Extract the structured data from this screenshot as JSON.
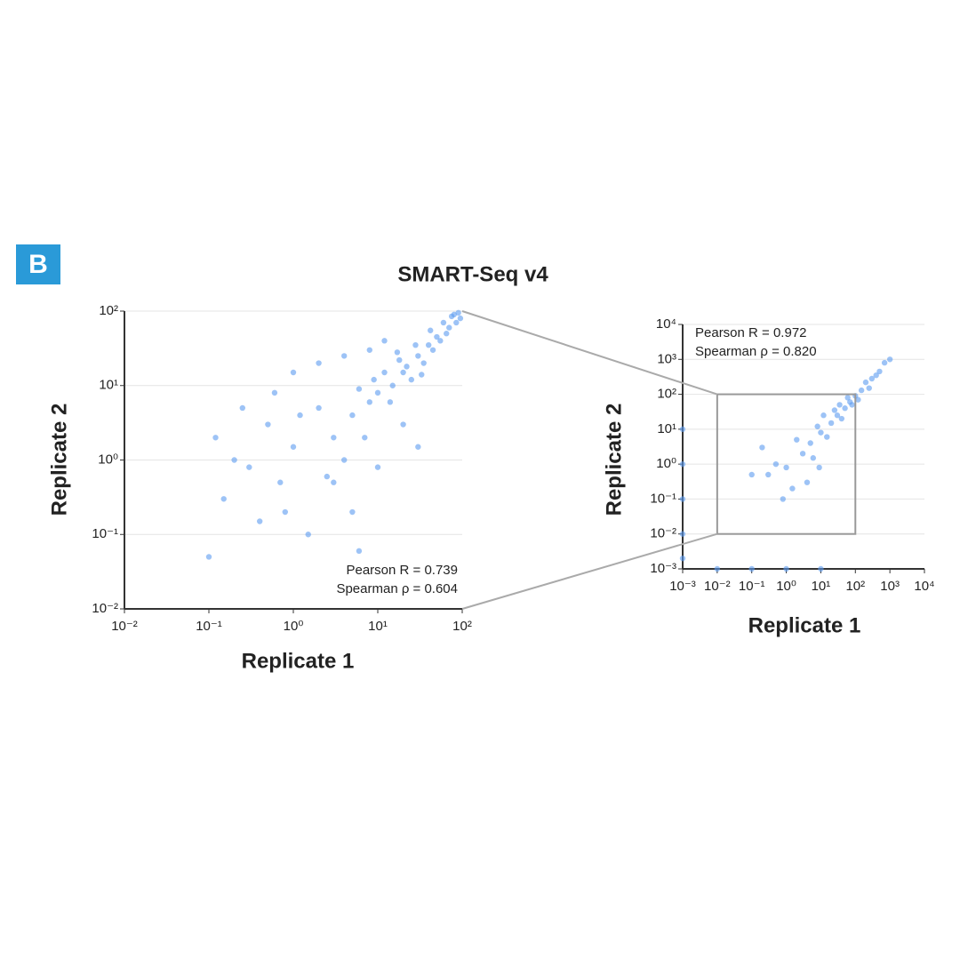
{
  "panel_label": "B",
  "chart_data": [
    {
      "type": "scatter",
      "title": "SMART-Seq v4",
      "x_label": "Replicate 1",
      "y_label": "Replicate 2",
      "annotations": [
        "Pearson R = 0.739",
        "Spearman ρ = 0.604"
      ],
      "xscale": "log",
      "yscale": "log",
      "grid": true,
      "color": "#5b9bf0",
      "xlim": [
        0.01,
        100
      ],
      "ylim": [
        0.01,
        100
      ],
      "xticks": [
        {
          "value": 0.01,
          "label": "10⁻²"
        },
        {
          "value": 0.1,
          "label": "10⁻¹"
        },
        {
          "value": 1,
          "label": "10⁰"
        },
        {
          "value": 10,
          "label": "10¹"
        },
        {
          "value": 100,
          "label": "10²"
        }
      ],
      "yticks": [
        {
          "value": 0.01,
          "label": "10⁻²"
        },
        {
          "value": 0.1,
          "label": "10⁻¹"
        },
        {
          "value": 1,
          "label": "10⁰"
        },
        {
          "value": 10,
          "label": "10¹"
        },
        {
          "value": 100,
          "label": "10²"
        }
      ],
      "x": [
        20,
        30,
        15,
        40,
        50,
        60,
        80,
        70,
        10,
        25,
        35,
        45,
        12,
        8,
        18,
        55,
        65,
        90,
        95,
        28,
        22,
        6,
        5,
        9,
        14,
        33,
        42,
        75,
        85,
        17,
        3,
        2,
        1,
        0.5,
        0.3,
        0.2,
        0.1,
        0.15,
        0.8,
        1.5,
        3,
        5,
        0.6,
        1,
        2,
        0.4,
        4,
        7,
        10,
        20,
        30,
        0.25,
        0.12,
        1.2,
        2.5,
        6,
        0.7,
        12,
        4,
        8
      ],
      "values": [
        15,
        25,
        10,
        35,
        45,
        70,
        90,
        60,
        8,
        12,
        20,
        30,
        15,
        6,
        22,
        40,
        50,
        95,
        80,
        35,
        18,
        9,
        4,
        12,
        6,
        14,
        55,
        85,
        70,
        28,
        2,
        5,
        1.5,
        3,
        0.8,
        1,
        0.05,
        0.3,
        0.2,
        0.1,
        0.5,
        0.2,
        8,
        15,
        20,
        0.15,
        1,
        2,
        0.8,
        3,
        1.5,
        5,
        2,
        4,
        0.6,
        0.06,
        0.5,
        40,
        25,
        30
      ]
    },
    {
      "type": "scatter",
      "x_label": "Replicate 1",
      "y_label": "Replicate 2",
      "annotations": [
        "Pearson R = 0.972",
        "Spearman ρ = 0.820"
      ],
      "xscale": "log",
      "yscale": "log",
      "grid": true,
      "color": "#5b9bf0",
      "xlim": [
        0.001,
        10000
      ],
      "ylim": [
        0.001,
        10000
      ],
      "xticks": [
        {
          "value": 0.001,
          "label": "10⁻³"
        },
        {
          "value": 0.01,
          "label": "10⁻²"
        },
        {
          "value": 0.1,
          "label": "10⁻¹"
        },
        {
          "value": 1,
          "label": "10⁰"
        },
        {
          "value": 10,
          "label": "10¹"
        },
        {
          "value": 100,
          "label": "10²"
        },
        {
          "value": 1000,
          "label": "10³"
        },
        {
          "value": 10000,
          "label": "10⁴"
        }
      ],
      "yticks": [
        {
          "value": 0.001,
          "label": "10⁻³"
        },
        {
          "value": 0.01,
          "label": "10⁻²"
        },
        {
          "value": 0.1,
          "label": "10⁻¹"
        },
        {
          "value": 1,
          "label": "10⁰"
        },
        {
          "value": 10,
          "label": "10¹"
        },
        {
          "value": 100,
          "label": "10²"
        },
        {
          "value": 1000,
          "label": "10³"
        },
        {
          "value": 10000,
          "label": "10⁴"
        }
      ],
      "x": [
        5,
        10,
        20,
        30,
        50,
        70,
        100,
        150,
        200,
        300,
        500,
        700,
        1000,
        8,
        15,
        3,
        2,
        1,
        0.5,
        0.3,
        0.2,
        40,
        25,
        60,
        12,
        6,
        4,
        1.5,
        0.8,
        0.1,
        80,
        120,
        250,
        400,
        35,
        9,
        0.001,
        0.001,
        0.001,
        0.001,
        0.001,
        0.01,
        0.1,
        1,
        10
      ],
      "values": [
        4,
        8,
        15,
        25,
        40,
        60,
        90,
        130,
        220,
        280,
        450,
        800,
        1000,
        12,
        6,
        2,
        5,
        0.8,
        1,
        0.5,
        3,
        20,
        35,
        80,
        25,
        1.5,
        0.3,
        0.2,
        0.1,
        0.5,
        50,
        70,
        150,
        350,
        50,
        0.8,
        10,
        1,
        0.1,
        0.01,
        0.002,
        0.001,
        0.001,
        0.001,
        0.001
      ]
    }
  ]
}
